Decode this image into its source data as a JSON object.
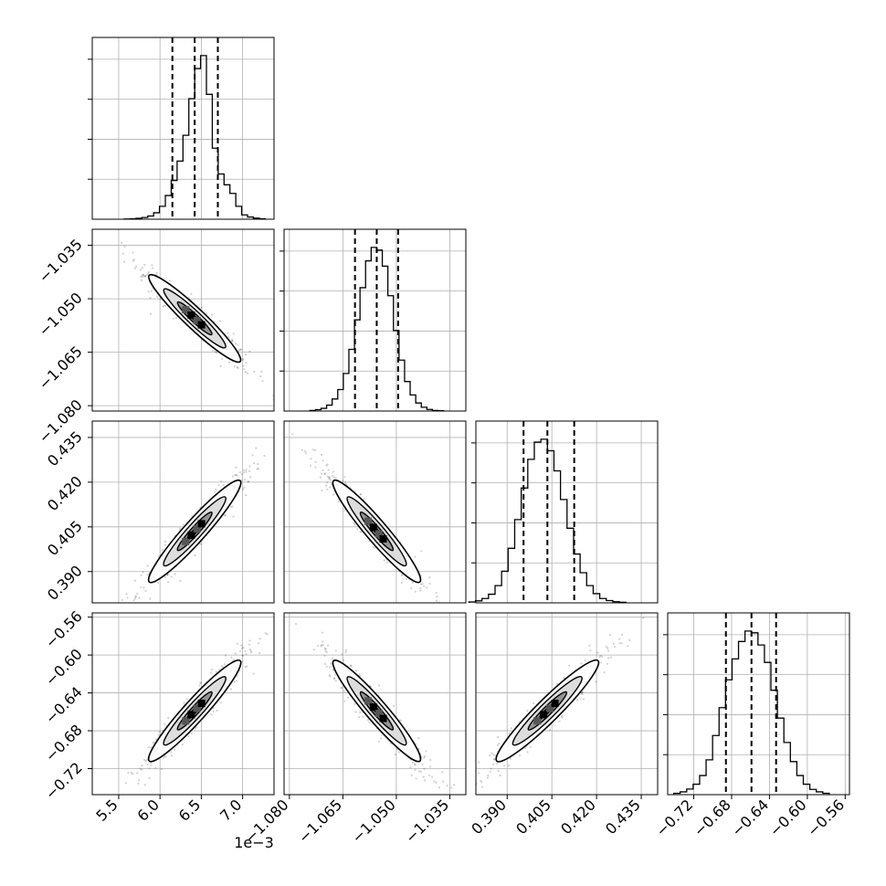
{
  "chart_data": {
    "type": "corner",
    "parameters": 4,
    "axes": [
      {
        "ticks": [
          5.5,
          6.0,
          6.5,
          7.0
        ],
        "tick_labels": [
          "5.5",
          "6.0",
          "6.5",
          "7.0"
        ],
        "offset_label": "1e−3",
        "range": [
          5.18,
          7.38
        ]
      },
      {
        "ticks": [
          -1.08,
          -1.065,
          -1.05,
          -1.035
        ],
        "tick_labels": [
          "−1.080",
          "−1.065",
          "−1.050",
          "−1.035"
        ],
        "range": [
          -1.0815,
          -1.0305
        ]
      },
      {
        "ticks": [
          0.39,
          0.405,
          0.42,
          0.435
        ],
        "tick_labels": [
          "0.390",
          "0.405",
          "0.420",
          "0.435"
        ],
        "range": [
          0.3795,
          0.4405
        ]
      },
      {
        "ticks": [
          -0.72,
          -0.68,
          -0.64,
          -0.6,
          -0.56
        ],
        "tick_labels": [
          "−0.72",
          "−0.68",
          "−0.64",
          "−0.60",
          "−0.56"
        ],
        "range": [
          -0.7475,
          -0.5555
        ]
      }
    ],
    "quantiles": [
      [
        6.15,
        6.42,
        6.7
      ],
      [
        -1.0616,
        -1.0555,
        -1.0495
      ],
      [
        0.3955,
        0.4035,
        0.4125
      ],
      [
        -0.686,
        -0.659,
        -0.633
      ]
    ],
    "histograms": [
      [
        1,
        2,
        4,
        8,
        15,
        30,
        60,
        110,
        180,
        270,
        390,
        560,
        700,
        760,
        580,
        330,
        210,
        160,
        120,
        60,
        20,
        10,
        5,
        2
      ],
      [
        2,
        5,
        10,
        22,
        45,
        80,
        140,
        230,
        340,
        460,
        560,
        610,
        600,
        540,
        430,
        300,
        190,
        110,
        60,
        30,
        14,
        6,
        2,
        1
      ],
      [
        3,
        7,
        15,
        30,
        60,
        110,
        190,
        290,
        400,
        500,
        560,
        570,
        530,
        460,
        360,
        260,
        170,
        105,
        60,
        32,
        15,
        8,
        4,
        2
      ],
      [
        4,
        8,
        16,
        30,
        55,
        100,
        170,
        250,
        330,
        390,
        440,
        470,
        465,
        430,
        380,
        300,
        220,
        150,
        95,
        55,
        30,
        15,
        8,
        4
      ]
    ],
    "grid": true
  }
}
